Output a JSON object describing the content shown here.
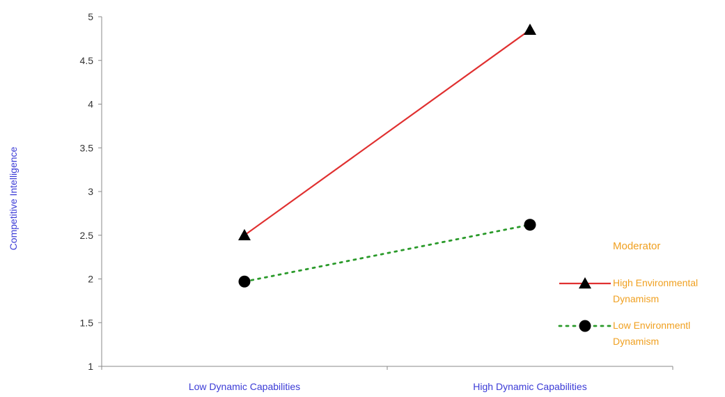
{
  "chart_data": {
    "type": "line",
    "categories": [
      "Low Dynamic Capabilities",
      "High Dynamic Capabilities"
    ],
    "ylabel": "Competitive Intelligence",
    "xlabel": "",
    "ylim": [
      1,
      5
    ],
    "yticks": [
      "1",
      "1.5",
      "2",
      "2.5",
      "3",
      "3.5",
      "4",
      "4.5",
      "5"
    ],
    "grid": false,
    "legend": {
      "title": "Moderator",
      "placement": "right",
      "entries": [
        {
          "lines": [
            "High Environmental",
            "Dynamism"
          ]
        },
        {
          "lines": [
            "Low Environmentl",
            "Dynamism"
          ]
        }
      ]
    },
    "series": [
      {
        "name": "High Environmental Dynamism",
        "values": [
          2.5,
          4.85
        ],
        "color": "#e03030",
        "marker": "triangle",
        "dash": "solid"
      },
      {
        "name": "Low Environmentl Dynamism",
        "values": [
          1.97,
          2.62
        ],
        "color": "#2a9a2a",
        "marker": "circle",
        "dash": "dotted"
      }
    ]
  }
}
